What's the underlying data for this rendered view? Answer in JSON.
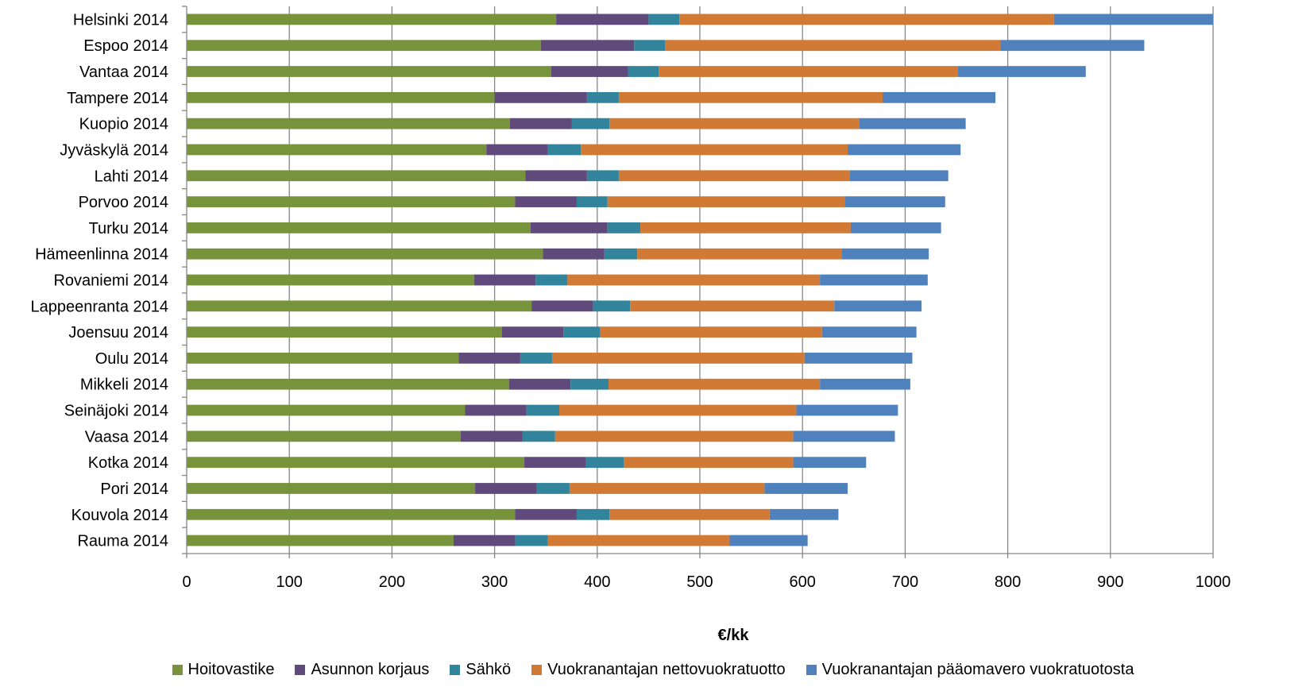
{
  "chart_data": {
    "type": "bar",
    "orientation": "horizontal",
    "stacked": true,
    "title": "",
    "xlabel": "€/kk",
    "ylabel": "",
    "xlim": [
      0,
      1000
    ],
    "x_ticks": [
      0,
      100,
      200,
      300,
      400,
      500,
      600,
      700,
      800,
      900,
      1000
    ],
    "grid": "vertical major gridlines",
    "legend_position": "bottom",
    "categories": [
      "Helsinki 2014",
      "Espoo 2014",
      "Vantaa 2014",
      "Tampere 2014",
      "Kuopio 2014",
      "Jyväskylä 2014",
      "Lahti 2014",
      "Porvoo 2014",
      "Turku 2014",
      "Hämeenlinna 2014",
      "Rovaniemi 2014",
      "Lappeenranta 2014",
      "Joensuu 2014",
      "Oulu 2014",
      "Mikkeli 2014",
      "Seinäjoki 2014",
      "Vaasa 2014",
      "Kotka 2014",
      "Pori 2014",
      "Kouvola 2014",
      "Rauma 2014"
    ],
    "series": [
      {
        "name": "Hoitovastike",
        "color": "#77933C",
        "values": [
          360,
          345,
          355,
          300,
          315,
          292,
          330,
          320,
          335,
          347,
          280,
          336,
          307,
          265,
          314,
          271,
          267,
          329,
          281,
          320,
          260
        ]
      },
      {
        "name": "Asunnon korjaus",
        "color": "#604A7B",
        "values": [
          90,
          91,
          75,
          90,
          60,
          60,
          60,
          60,
          75,
          60,
          60,
          60,
          60,
          60,
          60,
          60,
          60,
          60,
          60,
          60,
          60
        ]
      },
      {
        "name": "Sähkö",
        "color": "#31849B",
        "values": [
          30,
          30,
          30,
          31,
          37,
          32,
          31,
          30,
          32,
          32,
          31,
          36,
          36,
          31,
          37,
          32,
          32,
          37,
          32,
          32,
          32
        ]
      },
      {
        "name": "Vuokranantajan nettovuokratuotto",
        "color": "#D07A36",
        "values": [
          365,
          327,
          291,
          257,
          243,
          260,
          225,
          231,
          205,
          199,
          246,
          199,
          216,
          246,
          206,
          231,
          232,
          165,
          190,
          156,
          177
        ]
      },
      {
        "name": "Vuokranantajan pääomavero vuokratuotosta",
        "color": "#4F81BD",
        "values": [
          155,
          140,
          125,
          110,
          104,
          110,
          96,
          98,
          88,
          85,
          105,
          85,
          92,
          105,
          88,
          99,
          99,
          71,
          81,
          67,
          76
        ]
      }
    ]
  }
}
